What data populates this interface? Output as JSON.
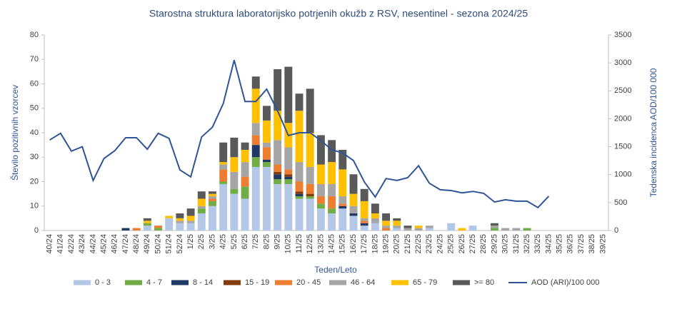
{
  "chart_data": {
    "type": "stacked-bar-line",
    "title": "Starostna struktura laboratorijsko potrjenih okužb z RSV, nesentinel - sezona 2024/25",
    "x_label": "Teden/Leto",
    "y_label": "Število pozitivnih vzorcev",
    "y2_label": "Tedenska incidenca AOD/100 000",
    "categories": [
      "40/24",
      "41/24",
      "42/24",
      "43/24",
      "44/24",
      "45/24",
      "46/24",
      "47/24",
      "48/24",
      "49/24",
      "50/24",
      "51/24",
      "52/24",
      "1/25",
      "2/25",
      "3/25",
      "4/25",
      "5/25",
      "6/25",
      "7/25",
      "8/25",
      "9/25",
      "10/25",
      "11/25",
      "12/25",
      "13/25",
      "14/25",
      "15/25",
      "16/25",
      "17/25",
      "18/25",
      "19/25",
      "20/25",
      "21/25",
      "22/25",
      "23/25",
      "24/25",
      "25/25",
      "26/25",
      "27/25",
      "28/25",
      "29/25",
      "30/25",
      "31/25",
      "32/25",
      "33/25",
      "34/25",
      "35/25",
      "36/25",
      "37/25",
      "38/25",
      "39/25"
    ],
    "series": [
      {
        "name": "0 - 3",
        "color": "#b4c7e7",
        "values": [
          0,
          0,
          0,
          0,
          0,
          0,
          0,
          0,
          0,
          2,
          0,
          5,
          3,
          3,
          7,
          10,
          19,
          15,
          13,
          26,
          26,
          19,
          19,
          13,
          13,
          9,
          7,
          9,
          6,
          2,
          3,
          0,
          1,
          0,
          0,
          1,
          0,
          3,
          0,
          2,
          0,
          0,
          0,
          0,
          0,
          0,
          0,
          0,
          0,
          0,
          0,
          0
        ]
      },
      {
        "name": "4 - 7",
        "color": "#70ad47",
        "values": [
          0,
          0,
          0,
          0,
          0,
          0,
          0,
          0,
          0,
          1,
          1,
          0,
          0,
          0,
          2,
          2,
          1,
          2,
          5,
          4,
          2,
          2,
          2,
          1,
          1,
          2,
          2,
          0,
          0,
          0,
          0,
          0,
          0,
          0,
          0,
          0,
          0,
          0,
          0,
          0,
          0,
          1,
          0,
          0,
          1,
          0,
          0,
          0,
          0,
          0,
          0,
          0
        ]
      },
      {
        "name": "8 - 14",
        "color": "#203864",
        "values": [
          0,
          0,
          0,
          0,
          0,
          0,
          0,
          1,
          0,
          0,
          0,
          0,
          0,
          0,
          0,
          0,
          0,
          0,
          0,
          5,
          1,
          2,
          1,
          1,
          0,
          0,
          0,
          1,
          1,
          1,
          0,
          0,
          0,
          0,
          0,
          0,
          0,
          0,
          0,
          0,
          0,
          0,
          0,
          0,
          0,
          0,
          0,
          0,
          0,
          0,
          0,
          0
        ]
      },
      {
        "name": "15 - 19",
        "color": "#843c0c",
        "values": [
          0,
          0,
          0,
          0,
          0,
          0,
          0,
          0,
          0,
          0,
          0,
          0,
          0,
          0,
          0,
          0,
          0,
          0,
          0,
          0,
          0,
          1,
          1,
          1,
          1,
          0,
          0,
          0,
          0,
          0,
          0,
          0,
          0,
          0,
          0,
          0,
          0,
          0,
          0,
          0,
          0,
          0,
          0,
          0,
          0,
          0,
          0,
          0,
          0,
          0,
          0,
          0
        ]
      },
      {
        "name": "20 - 45",
        "color": "#ed7d31",
        "values": [
          0,
          0,
          0,
          0,
          0,
          0,
          0,
          0,
          1,
          0,
          1,
          0,
          0,
          0,
          0,
          1,
          5,
          0,
          4,
          4,
          5,
          3,
          2,
          4,
          4,
          3,
          5,
          1,
          0,
          1,
          0,
          1,
          0,
          0,
          0,
          0,
          0,
          0,
          0,
          0,
          0,
          0,
          0,
          0,
          0,
          0,
          0,
          0,
          0,
          0,
          0,
          0
        ]
      },
      {
        "name": "46 - 64",
        "color": "#a5a5a5",
        "values": [
          0,
          0,
          0,
          0,
          0,
          0,
          0,
          0,
          0,
          0,
          0,
          0,
          1,
          1,
          1,
          1,
          2,
          7,
          6,
          5,
          2,
          10,
          9,
          8,
          7,
          5,
          5,
          3,
          3,
          1,
          2,
          1,
          1,
          1,
          1,
          1,
          0,
          0,
          0,
          0,
          0,
          1,
          1,
          1,
          0,
          0,
          0,
          0,
          0,
          0,
          0,
          0
        ]
      },
      {
        "name": "65 - 79",
        "color": "#ffc000",
        "values": [
          0,
          0,
          0,
          0,
          0,
          0,
          0,
          0,
          0,
          1,
          0,
          1,
          1,
          2,
          3,
          1,
          1,
          6,
          5,
          14,
          9,
          12,
          10,
          21,
          14,
          8,
          9,
          11,
          5,
          7,
          2,
          2,
          2,
          0,
          1,
          0,
          0,
          0,
          1,
          0,
          0,
          0,
          0,
          0,
          0,
          0,
          0,
          0,
          0,
          0,
          0,
          0
        ]
      },
      {
        "name": ">= 80",
        "color": "#595959",
        "values": [
          0,
          0,
          0,
          0,
          0,
          0,
          0,
          0,
          0,
          1,
          0,
          0,
          2,
          3,
          3,
          1,
          8,
          8,
          3,
          5,
          6,
          17,
          23,
          7,
          18,
          12,
          9,
          8,
          8,
          5,
          4,
          3,
          1,
          1,
          0,
          0,
          0,
          0,
          0,
          0,
          0,
          1,
          0,
          0,
          0,
          0,
          0,
          0,
          0,
          0,
          0,
          0
        ]
      },
      {
        "name": "AOD (ARI)/100 000",
        "color": "#2f5597",
        "axis": "y2",
        "values": [
          1620,
          1740,
          1420,
          1500,
          895,
          1290,
          1430,
          1660,
          1660,
          1455,
          1740,
          1650,
          1085,
          960,
          1675,
          1850,
          2275,
          3050,
          2310,
          2310,
          2530,
          2145,
          1700,
          1750,
          1750,
          1610,
          1445,
          1390,
          1250,
          870,
          600,
          930,
          895,
          945,
          1160,
          845,
          730,
          715,
          675,
          700,
          665,
          510,
          550,
          525,
          525,
          410,
          615,
          null,
          null,
          null,
          null,
          null
        ]
      }
    ],
    "ylim": [
      0,
      80
    ],
    "yticks": [
      0,
      10,
      20,
      30,
      40,
      50,
      60,
      70,
      80
    ],
    "y2lim": [
      0,
      3500
    ],
    "y2ticks": [
      0,
      500,
      1000,
      1500,
      2000,
      2500,
      3000,
      3500
    ],
    "grid": false,
    "legend": "bottom"
  }
}
